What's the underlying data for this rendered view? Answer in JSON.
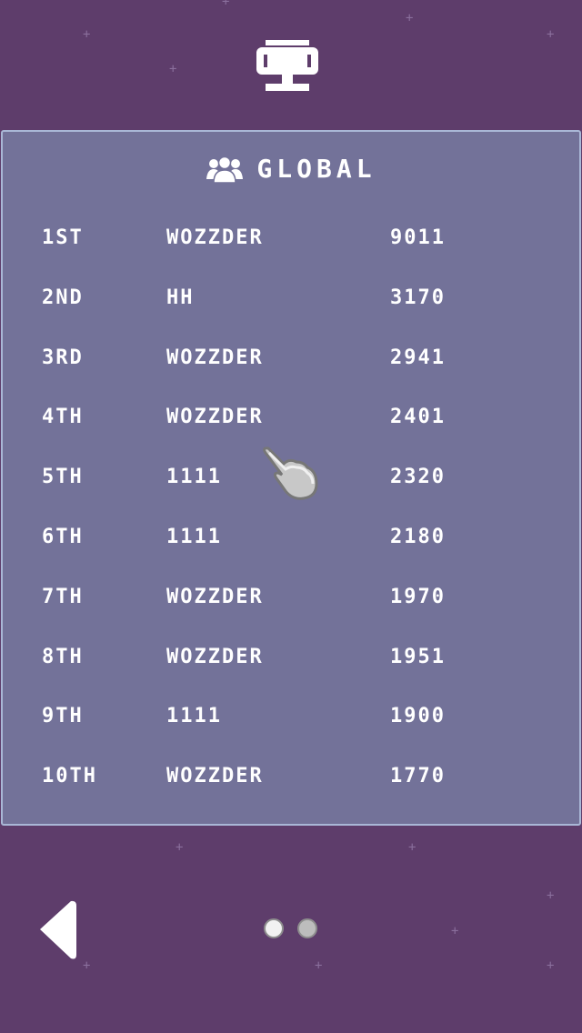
{
  "header": {
    "icon": "trophy-icon"
  },
  "leaderboard": {
    "title": "GLOBAL",
    "title_icon": "group-icon",
    "rows": [
      {
        "rank": "1ST",
        "name": "WOZZDER",
        "score": "9011"
      },
      {
        "rank": "2ND",
        "name": "HH",
        "score": "3170"
      },
      {
        "rank": "3RD",
        "name": "WOZZDER",
        "score": "2941"
      },
      {
        "rank": "4TH",
        "name": "WOZZDER",
        "score": "2401"
      },
      {
        "rank": "5TH",
        "name": "1111",
        "score": "2320"
      },
      {
        "rank": "6TH",
        "name": "1111",
        "score": "2180"
      },
      {
        "rank": "7TH",
        "name": "WOZZDER",
        "score": "1970"
      },
      {
        "rank": "8TH",
        "name": "WOZZDER",
        "score": "1951"
      },
      {
        "rank": "9TH",
        "name": "1111",
        "score": "1900"
      },
      {
        "rank": "10TH",
        "name": "WOZZDER",
        "score": "1770"
      }
    ]
  },
  "footer": {
    "back_icon": "back-arrow-icon",
    "pages": 2,
    "current_page": 1
  },
  "colors": {
    "background": "#5e3d6b",
    "panel": "#737299",
    "panel_border": "#a9b7d6"
  }
}
